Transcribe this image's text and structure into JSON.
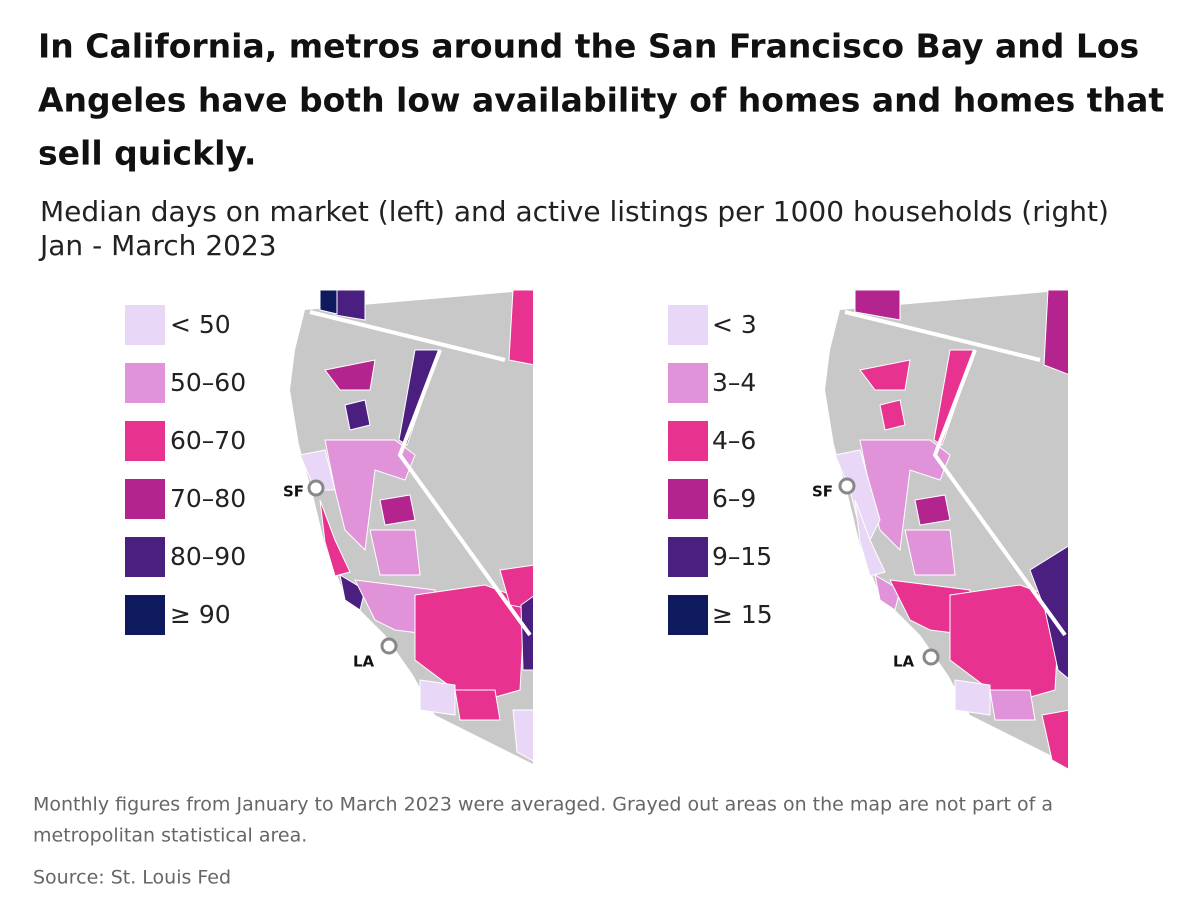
{
  "title": [
    "In California, metros around the San Francisco Bay and Los",
    "Angeles have both low availability of homes and homes that",
    "sell quickly."
  ],
  "subtitle": [
    "Median days on market (left) and active listings per 1000 households (right)",
    "Jan - March 2023"
  ],
  "maps": [
    {
      "legend": [
        {
          "label": "< 50",
          "color": "#e9d7f7"
        },
        {
          "label": "50–60",
          "color": "#e093d9"
        },
        {
          "label": "60–70",
          "color": "#e7328f"
        },
        {
          "label": "70–80",
          "color": "#b3248f"
        },
        {
          "label": "80–90",
          "color": "#4b1f80"
        },
        {
          "label": "≥ 90",
          "color": "#0f1a5e"
        }
      ],
      "cities": [
        "SF",
        "LA"
      ]
    },
    {
      "legend": [
        {
          "label": "< 3",
          "color": "#e9d7f7"
        },
        {
          "label": "3–4",
          "color": "#e093d9"
        },
        {
          "label": "4–6",
          "color": "#e7328f"
        },
        {
          "label": "6–9",
          "color": "#b3248f"
        },
        {
          "label": "9–15",
          "color": "#4b1f80"
        },
        {
          "label": "≥ 15",
          "color": "#0f1a5e"
        }
      ],
      "cities": [
        "SF",
        "LA"
      ]
    }
  ],
  "note": [
    "Monthly figures from January to March 2023 were averaged. Grayed out areas on the map are not part of a",
    "metropolitan statistical area."
  ],
  "source": "Source: St. Louis Fed"
}
